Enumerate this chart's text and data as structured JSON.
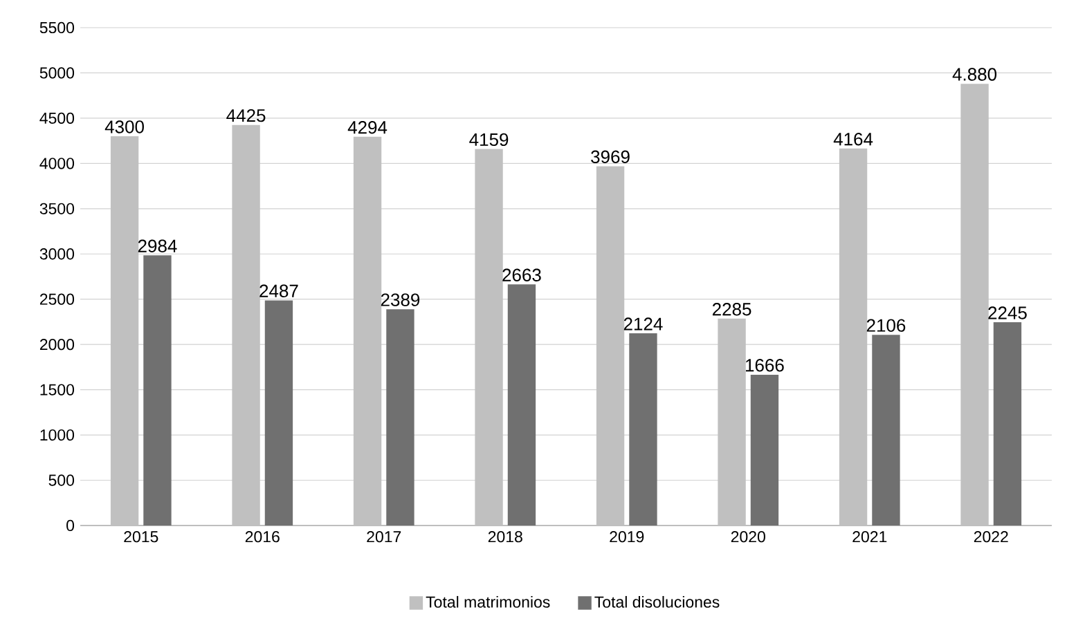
{
  "chart_data": {
    "type": "bar",
    "categories": [
      "2015",
      "2016",
      "2017",
      "2018",
      "2019",
      "2020",
      "2021",
      "2022"
    ],
    "series": [
      {
        "name": "Total matrimonios",
        "color": "#c0c0c0",
        "values": [
          4300,
          4425,
          4294,
          4159,
          3969,
          2285,
          4164,
          4880
        ],
        "value_labels": [
          "4300",
          "4425",
          "4294",
          "4159",
          "3969",
          "2285",
          "4164",
          "4.880"
        ]
      },
      {
        "name": "Total disoluciones",
        "color": "#707070",
        "values": [
          2984,
          2487,
          2389,
          2663,
          2124,
          1666,
          2106,
          2245
        ],
        "value_labels": [
          "2984",
          "2487",
          "2389",
          "2663",
          "2124",
          "1666",
          "2106",
          "2245"
        ]
      }
    ],
    "ylim": [
      0,
      5500
    ],
    "yticks": [
      0,
      500,
      1000,
      1500,
      2000,
      2500,
      3000,
      3500,
      4000,
      4500,
      5000,
      5500
    ],
    "grid": "y",
    "legend": "bottom"
  }
}
